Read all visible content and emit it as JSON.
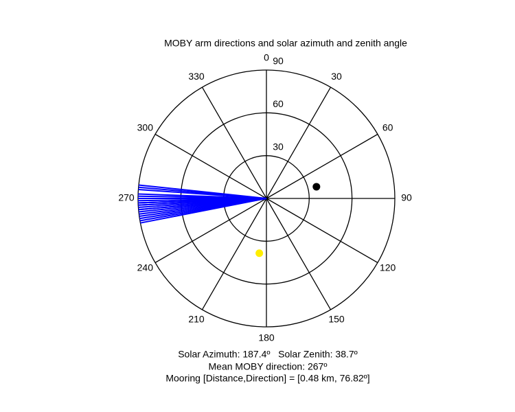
{
  "chart_data": {
    "type": "polar",
    "title": "MOBY arm directions and solar azimuth and zenith angle",
    "thetaticks": [
      0,
      30,
      60,
      90,
      120,
      150,
      180,
      210,
      240,
      270,
      300,
      330
    ],
    "rlim": [
      0,
      90
    ],
    "rticks": [
      30,
      60,
      90
    ],
    "lines": {
      "color": "#0000ff",
      "r": 90,
      "theta": [
        276,
        275,
        274,
        272,
        271,
        270,
        270,
        269,
        268,
        268,
        267,
        267,
        266,
        265,
        265,
        264,
        263,
        262,
        261,
        260,
        259,
        268
      ]
    },
    "points": [
      {
        "theta": 187.4,
        "r": 38.7,
        "color": "#ffee00"
      },
      {
        "theta": 76.82,
        "r": 36,
        "color": "#000000"
      }
    ],
    "annotations": [
      "Solar Azimuth: 187.4º   Solar Zenith: 38.7º",
      "Mean MOBY direction: 267º",
      "Mooring [Distance,Direction] = [0.48 km, 76.82º]"
    ]
  }
}
